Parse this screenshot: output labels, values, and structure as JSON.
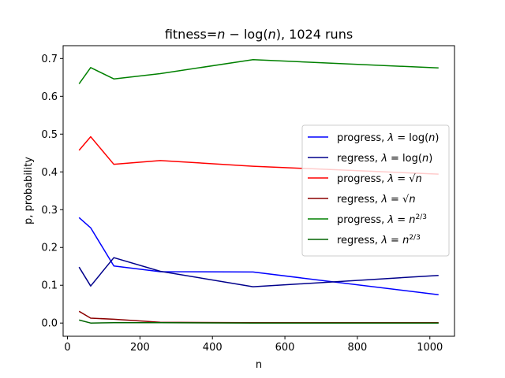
{
  "chart_data": {
    "type": "line",
    "title": "fitness=n − log(n), 1024 runs",
    "title_parts": {
      "prefix": "fitness=",
      "n1": "n",
      "minus": " − log(",
      "n2": "n",
      "suffix": "), 1024 runs"
    },
    "xlabel": "n",
    "ylabel": "p, probability",
    "xlim": [
      -12,
      1068
    ],
    "ylim": [
      -0.035,
      0.734
    ],
    "xticks": [
      0,
      200,
      400,
      600,
      800,
      1000
    ],
    "yticks": [
      0.0,
      0.1,
      0.2,
      0.3,
      0.4,
      0.5,
      0.6,
      0.7
    ],
    "ytick_labels": [
      "0.0",
      "0.1",
      "0.2",
      "0.3",
      "0.4",
      "0.5",
      "0.6",
      "0.7"
    ],
    "grid": false,
    "legend_position": "center-right",
    "x": [
      32,
      64,
      128,
      256,
      512,
      1024
    ],
    "series": [
      {
        "name": "progress, λ = log(n)",
        "label_html": {
          "pre": "progress, ",
          "lambda": "λ",
          "eq": " = log(",
          "var": "n",
          "post": ")"
        },
        "color": "#0000ff",
        "values": [
          0.279,
          0.252,
          0.151,
          0.136,
          0.135,
          0.075
        ]
      },
      {
        "name": "regress, λ = log(n)",
        "label_html": {
          "pre": "regress, ",
          "lambda": "λ",
          "eq": " = log(",
          "var": "n",
          "post": ")"
        },
        "color": "#00008b",
        "values": [
          0.148,
          0.098,
          0.173,
          0.137,
          0.096,
          0.126
        ]
      },
      {
        "name": "progress, λ = √n",
        "label_html": {
          "pre": "progress, ",
          "lambda": "λ",
          "eq": " = √",
          "var": "n",
          "post": ""
        },
        "color": "#ff0000",
        "values": [
          0.457,
          0.493,
          0.42,
          0.43,
          0.415,
          0.394
        ]
      },
      {
        "name": "regress, λ = √n",
        "label_html": {
          "pre": "regress, ",
          "lambda": "λ",
          "eq": " = √",
          "var": "n",
          "post": ""
        },
        "color": "#8b0000",
        "values": [
          0.031,
          0.013,
          0.01,
          0.002,
          0.001,
          0.001
        ]
      },
      {
        "name": "progress, λ = n^(2/3)",
        "label_html": {
          "pre": "progress, ",
          "lambda": "λ",
          "eq": " = ",
          "var": "n",
          "post": "",
          "sup": "2/3"
        },
        "color": "#008000",
        "values": [
          0.633,
          0.676,
          0.646,
          0.66,
          0.697,
          0.675
        ]
      },
      {
        "name": "regress, λ = n^(2/3)",
        "label_html": {
          "pre": "regress, ",
          "lambda": "λ",
          "eq": " = ",
          "var": "n",
          "post": "",
          "sup": "2/3"
        },
        "color": "#006400",
        "values": [
          0.008,
          0.0,
          0.001,
          0.001,
          0.0,
          0.0
        ]
      }
    ]
  }
}
